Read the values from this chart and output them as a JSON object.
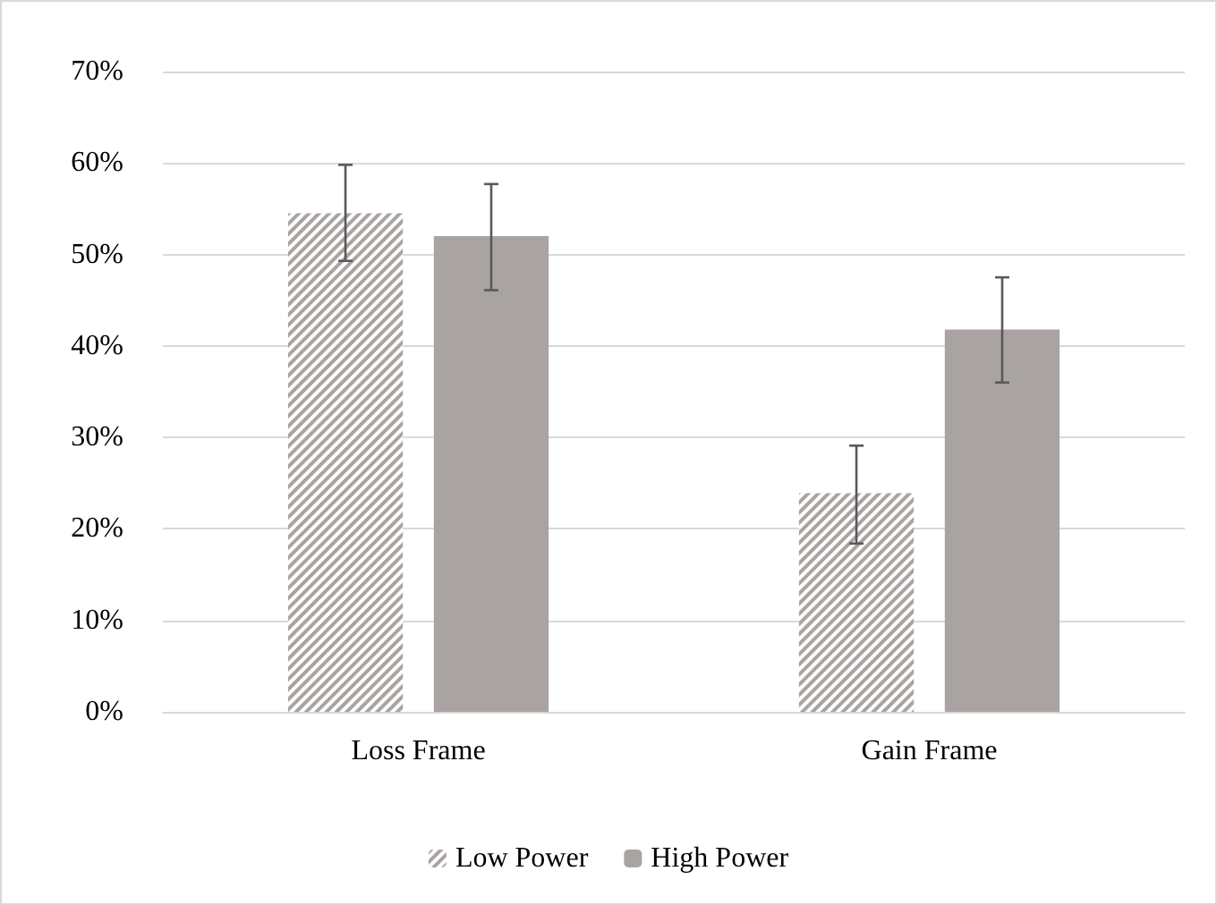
{
  "chart_data": {
    "type": "bar",
    "categories": [
      "Loss Frame",
      "Gain Frame"
    ],
    "series": [
      {
        "name": "Low Power",
        "color": "#a9a4a1",
        "values": [
          54.5,
          23.9
        ],
        "errors": [
          [
            49.3,
            59.8
          ],
          [
            18.4,
            29.1
          ]
        ]
      },
      {
        "name": "High Power",
        "color": "#a9a4a1",
        "values": [
          52.0,
          41.8
        ],
        "errors": [
          [
            46.1,
            57.7
          ],
          [
            36.0,
            47.5
          ]
        ]
      }
    ],
    "ylim": [
      0,
      70
    ],
    "yticks": [
      {
        "value": 0,
        "label": "0%"
      },
      {
        "value": 10,
        "label": "10%"
      },
      {
        "value": 20,
        "label": "20%"
      },
      {
        "value": 30,
        "label": "30%"
      },
      {
        "value": 40,
        "label": "40%"
      },
      {
        "value": 50,
        "label": "50%"
      },
      {
        "value": 60,
        "label": "60%"
      },
      {
        "value": 70,
        "label": "70%"
      }
    ],
    "grid": "y",
    "legend": "bottom"
  }
}
